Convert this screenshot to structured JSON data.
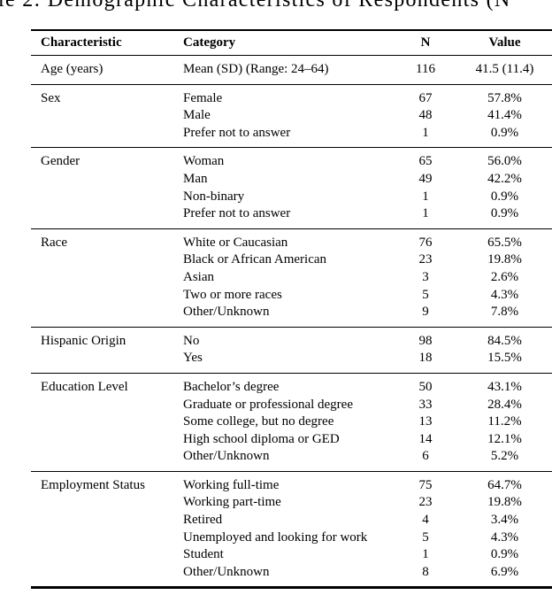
{
  "caption": {
    "visible_text": "le 2: Demographic Characteristics of Respondents (N"
  },
  "table": {
    "headers": {
      "characteristic": "Characteristic",
      "category": "Category",
      "n": "N",
      "value": "Value"
    },
    "sections": [
      {
        "characteristic": "Age (years)",
        "rows": [
          {
            "category": "Mean (SD) (Range: 24–64)",
            "n": "116",
            "value": "41.5 (11.4)"
          }
        ]
      },
      {
        "characteristic": "Sex",
        "rows": [
          {
            "category": "Female",
            "n": "67",
            "value": "57.8%"
          },
          {
            "category": "Male",
            "n": "48",
            "value": "41.4%"
          },
          {
            "category": "Prefer not to answer",
            "n": "1",
            "value": "0.9%"
          }
        ]
      },
      {
        "characteristic": "Gender",
        "rows": [
          {
            "category": "Woman",
            "n": "65",
            "value": "56.0%"
          },
          {
            "category": "Man",
            "n": "49",
            "value": "42.2%"
          },
          {
            "category": "Non-binary",
            "n": "1",
            "value": "0.9%"
          },
          {
            "category": "Prefer not to answer",
            "n": "1",
            "value": "0.9%"
          }
        ]
      },
      {
        "characteristic": "Race",
        "rows": [
          {
            "category": "White or Caucasian",
            "n": "76",
            "value": "65.5%"
          },
          {
            "category": "Black or African American",
            "n": "23",
            "value": "19.8%"
          },
          {
            "category": "Asian",
            "n": "3",
            "value": "2.6%"
          },
          {
            "category": "Two or more races",
            "n": "5",
            "value": "4.3%"
          },
          {
            "category": "Other/Unknown",
            "n": "9",
            "value": "7.8%"
          }
        ]
      },
      {
        "characteristic": "Hispanic Origin",
        "rows": [
          {
            "category": "No",
            "n": "98",
            "value": "84.5%"
          },
          {
            "category": "Yes",
            "n": "18",
            "value": "15.5%"
          }
        ]
      },
      {
        "characteristic": "Education Level",
        "rows": [
          {
            "category": "Bachelor’s degree",
            "n": "50",
            "value": "43.1%"
          },
          {
            "category": "Graduate or professional degree",
            "n": "33",
            "value": "28.4%"
          },
          {
            "category": "Some college, but no degree",
            "n": "13",
            "value": "11.2%"
          },
          {
            "category": "High school diploma or GED",
            "n": "14",
            "value": "12.1%"
          },
          {
            "category": "Other/Unknown",
            "n": "6",
            "value": "5.2%"
          }
        ]
      },
      {
        "characteristic": "Employment Status",
        "rows": [
          {
            "category": "Working full-time",
            "n": "75",
            "value": "64.7%"
          },
          {
            "category": "Working part-time",
            "n": "23",
            "value": "19.8%"
          },
          {
            "category": "Retired",
            "n": "4",
            "value": "3.4%"
          },
          {
            "category": "Unemployed and looking for work",
            "n": "5",
            "value": "4.3%"
          },
          {
            "category": "Student",
            "n": "1",
            "value": "0.9%"
          },
          {
            "category": "Other/Unknown",
            "n": "8",
            "value": "6.9%"
          }
        ]
      }
    ],
    "colors": {
      "text": "#000000",
      "rule": "#000000",
      "background": "#ffffff"
    }
  }
}
